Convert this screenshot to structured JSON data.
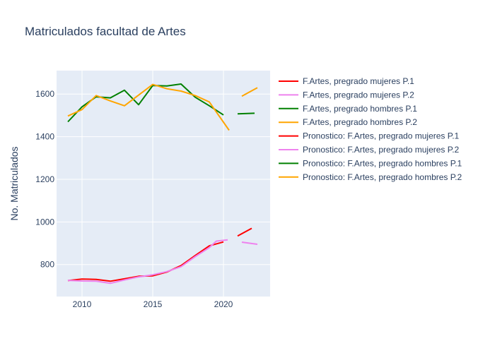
{
  "chart_data": {
    "type": "line",
    "title": "Matriculados facultad de Artes",
    "xlabel": "",
    "ylabel": "No. Matriculados",
    "xlim": [
      2008.2,
      2023.3
    ],
    "ylim": [
      650,
      1710
    ],
    "x_ticks": [
      2010,
      2015,
      2020
    ],
    "y_ticks": [
      800,
      1000,
      1200,
      1400,
      1600
    ],
    "grid": true,
    "legend_position": "right",
    "series": [
      {
        "name": "F.Artes, pregrado mujeres P.1",
        "color": "#ff0000",
        "points": [
          [
            2009,
            725
          ],
          [
            2010,
            732
          ],
          [
            2011,
            730
          ],
          [
            2012,
            722
          ],
          [
            2013,
            733
          ],
          [
            2014,
            745
          ],
          [
            2015,
            747
          ],
          [
            2016,
            765
          ],
          [
            2017,
            795
          ],
          [
            2018,
            842
          ],
          [
            2019,
            888
          ],
          [
            2020,
            906
          ]
        ]
      },
      {
        "name": "F.Artes, pregrado mujeres P.2",
        "color": "#ee82ee",
        "points": [
          [
            2009,
            726
          ],
          [
            2010,
            723
          ],
          [
            2011,
            722
          ],
          [
            2012,
            712
          ],
          [
            2013,
            728
          ],
          [
            2014,
            742
          ],
          [
            2015,
            752
          ],
          [
            2016,
            767
          ],
          [
            2017,
            790
          ],
          [
            2018,
            837
          ],
          [
            2019,
            880
          ],
          [
            2019.5,
            910
          ],
          [
            2020.3,
            916
          ]
        ]
      },
      {
        "name": "F.Artes, pregrado hombres P.1",
        "color": "#008000",
        "points": [
          [
            2009,
            1470
          ],
          [
            2010,
            1540
          ],
          [
            2011,
            1587
          ],
          [
            2012,
            1582
          ],
          [
            2013,
            1618
          ],
          [
            2014,
            1550
          ],
          [
            2015,
            1640
          ],
          [
            2016,
            1638
          ],
          [
            2017,
            1647
          ],
          [
            2018,
            1585
          ],
          [
            2019,
            1545
          ],
          [
            2020,
            1502
          ]
        ]
      },
      {
        "name": "F.Artes, pregrado hombres P.2",
        "color": "#ffa500",
        "points": [
          [
            2009,
            1497
          ],
          [
            2010,
            1527
          ],
          [
            2011,
            1593
          ],
          [
            2012,
            1568
          ],
          [
            2013,
            1545
          ],
          [
            2014,
            1595
          ],
          [
            2015,
            1645
          ],
          [
            2016,
            1625
          ],
          [
            2017,
            1614
          ],
          [
            2018,
            1593
          ],
          [
            2019,
            1563
          ],
          [
            2020.4,
            1430
          ]
        ]
      },
      {
        "name": "Pronostico: F.Artes, pregrado mujeres P.1",
        "color": "#ff0000",
        "points": [
          [
            2021,
            934
          ],
          [
            2022,
            970
          ]
        ]
      },
      {
        "name": "Pronostico: F.Artes, pregrado mujeres P.2",
        "color": "#ee82ee",
        "points": [
          [
            2021.3,
            905
          ],
          [
            2022.4,
            895
          ]
        ]
      },
      {
        "name": "Pronostico: F.Artes, pregrado hombres P.1",
        "color": "#008000",
        "points": [
          [
            2021,
            1507
          ],
          [
            2022.2,
            1510
          ]
        ]
      },
      {
        "name": "Pronostico: F.Artes, pregrado hombres P.2",
        "color": "#ffa500",
        "points": [
          [
            2021.3,
            1590
          ],
          [
            2022.4,
            1630
          ]
        ]
      }
    ]
  }
}
